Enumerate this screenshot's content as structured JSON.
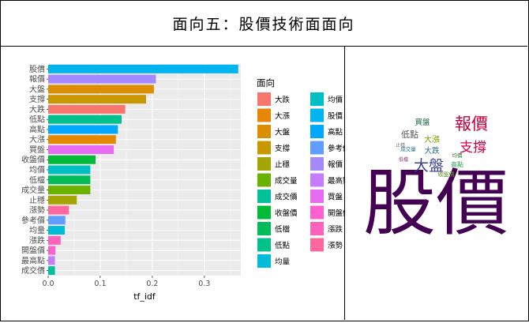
{
  "title": "面向五：股價技術面面向",
  "chart_data": {
    "type": "bar",
    "orientation": "horizontal",
    "xlabel": "tf_idf",
    "ylabel": "",
    "xlim": [
      0,
      0.37
    ],
    "x_ticks": [
      "0.0",
      "0.1",
      "0.2",
      "0.3"
    ],
    "grid": true,
    "legend_title": "面向",
    "legend_position": "right",
    "bars": [
      {
        "category": "股價",
        "value": 0.365,
        "color": "#00B4EF"
      },
      {
        "category": "報價",
        "value": 0.207,
        "color": "#A58AFF"
      },
      {
        "category": "大盤",
        "value": 0.203,
        "color": "#DB8E00"
      },
      {
        "category": "支撐",
        "value": 0.188,
        "color": "#C99800"
      },
      {
        "category": "大跌",
        "value": 0.148,
        "color": "#F8766D"
      },
      {
        "category": "低點",
        "value": 0.141,
        "color": "#00C08B"
      },
      {
        "category": "高點",
        "value": 0.134,
        "color": "#00A9FF"
      },
      {
        "category": "大漲",
        "value": 0.13,
        "color": "#E58700"
      },
      {
        "category": "買盤",
        "value": 0.126,
        "color": "#E76BF3"
      },
      {
        "category": "收盤價",
        "value": 0.091,
        "color": "#00BA38"
      },
      {
        "category": "均價",
        "value": 0.081,
        "color": "#00BFC4"
      },
      {
        "category": "低檔",
        "value": 0.081,
        "color": "#00BC59"
      },
      {
        "category": "成交量",
        "value": 0.081,
        "color": "#6BB100"
      },
      {
        "category": "止穩",
        "value": 0.055,
        "color": "#A3A500"
      },
      {
        "category": "漲勢",
        "value": 0.04,
        "color": "#FF689F"
      },
      {
        "category": "參考價",
        "value": 0.033,
        "color": "#619CFF"
      },
      {
        "category": "均量",
        "value": 0.032,
        "color": "#00BCD8"
      },
      {
        "category": "漲跌",
        "value": 0.024,
        "color": "#FF62BC"
      },
      {
        "category": "開盤價",
        "value": 0.014,
        "color": "#FD61D1"
      },
      {
        "category": "最高點",
        "value": 0.013,
        "color": "#C77CFF"
      },
      {
        "category": "成交價",
        "value": 0.013,
        "color": "#00C19A"
      }
    ],
    "legend": [
      {
        "label": "大跌",
        "color": "#F8766D"
      },
      {
        "label": "大漲",
        "color": "#E58700"
      },
      {
        "label": "大盤",
        "color": "#DB8E00"
      },
      {
        "label": "支撐",
        "color": "#C99800"
      },
      {
        "label": "止穩",
        "color": "#A3A500"
      },
      {
        "label": "成交量",
        "color": "#6BB100"
      },
      {
        "label": "成交價",
        "color": "#00C19A"
      },
      {
        "label": "收盤價",
        "color": "#00BA38"
      },
      {
        "label": "低檔",
        "color": "#00BC59"
      },
      {
        "label": "低點",
        "color": "#00C08B"
      },
      {
        "label": "均量",
        "color": "#00BCD8"
      },
      {
        "label": "均價",
        "color": "#00BFC4"
      },
      {
        "label": "股價",
        "color": "#00B4EF"
      },
      {
        "label": "高點",
        "color": "#00A9FF"
      },
      {
        "label": "參考價",
        "color": "#619CFF"
      },
      {
        "label": "報價",
        "color": "#A58AFF"
      },
      {
        "label": "最高點",
        "color": "#C77CFF"
      },
      {
        "label": "買盤",
        "color": "#E76BF3"
      },
      {
        "label": "開盤價",
        "color": "#FD61D1"
      },
      {
        "label": "漲跌",
        "color": "#FF62BC"
      },
      {
        "label": "漲勢",
        "color": "#FF689F"
      }
    ]
  },
  "wordcloud": {
    "words": [
      {
        "text": "股價",
        "color": "#440154"
      },
      {
        "text": "報價",
        "color": "#c0003a"
      },
      {
        "text": "支撐",
        "color": "#d4004a"
      },
      {
        "text": "大盤",
        "color": "#3b3f8c"
      },
      {
        "text": "低點",
        "color": "#555555"
      },
      {
        "text": "買盤",
        "color": "#2a6a46"
      },
      {
        "text": "大漲",
        "color": "#7a9a00"
      },
      {
        "text": "大跌",
        "color": "#2d6a8a"
      },
      {
        "text": "高點",
        "color": "#2a9c5a"
      },
      {
        "text": "收盤價",
        "color": "#5c8c2a"
      },
      {
        "text": "成交量",
        "color": "#1f6f8b"
      },
      {
        "text": "均價",
        "color": "#3a7a3a"
      },
      {
        "text": "止穩",
        "color": "#6a6a6a"
      },
      {
        "text": "低檔",
        "color": "#8a3a6a"
      }
    ]
  }
}
